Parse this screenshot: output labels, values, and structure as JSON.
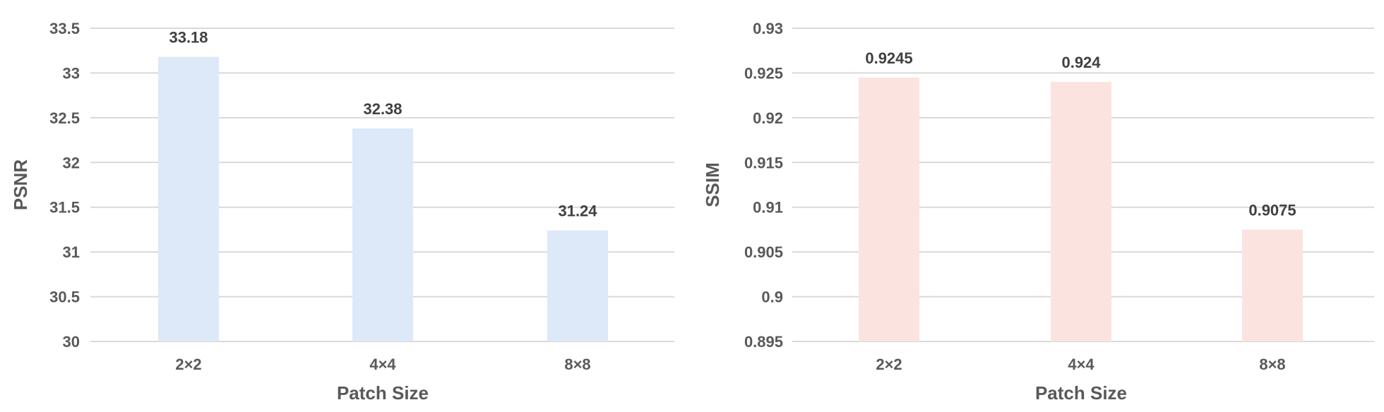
{
  "chart_data": [
    {
      "type": "bar",
      "title": "",
      "categories": [
        "2×2",
        "4×4",
        "8×8"
      ],
      "values": [
        33.18,
        32.38,
        31.24
      ],
      "data_labels": [
        "33.18",
        "32.38",
        "31.24"
      ],
      "xlabel": "Patch Size",
      "ylabel": "PSNR",
      "ylim": [
        30,
        33.5
      ],
      "yticks": [
        "30",
        "30.5",
        "31",
        "31.5",
        "32",
        "32.5",
        "33",
        "33.5"
      ],
      "grid": true,
      "legend": "none",
      "bar_color": "#dde9f8"
    },
    {
      "type": "bar",
      "title": "",
      "categories": [
        "2×2",
        "4×4",
        "8×8"
      ],
      "values": [
        0.9245,
        0.924,
        0.9075
      ],
      "data_labels": [
        "0.9245",
        "0.924",
        "0.9075"
      ],
      "xlabel": "Patch Size",
      "ylabel": "SSIM",
      "ylim": [
        0.895,
        0.93
      ],
      "yticks": [
        "0.895",
        "0.9",
        "0.905",
        "0.91",
        "0.915",
        "0.92",
        "0.925",
        "0.93"
      ],
      "grid": true,
      "legend": "none",
      "bar_color": "#fbe4df"
    }
  ]
}
